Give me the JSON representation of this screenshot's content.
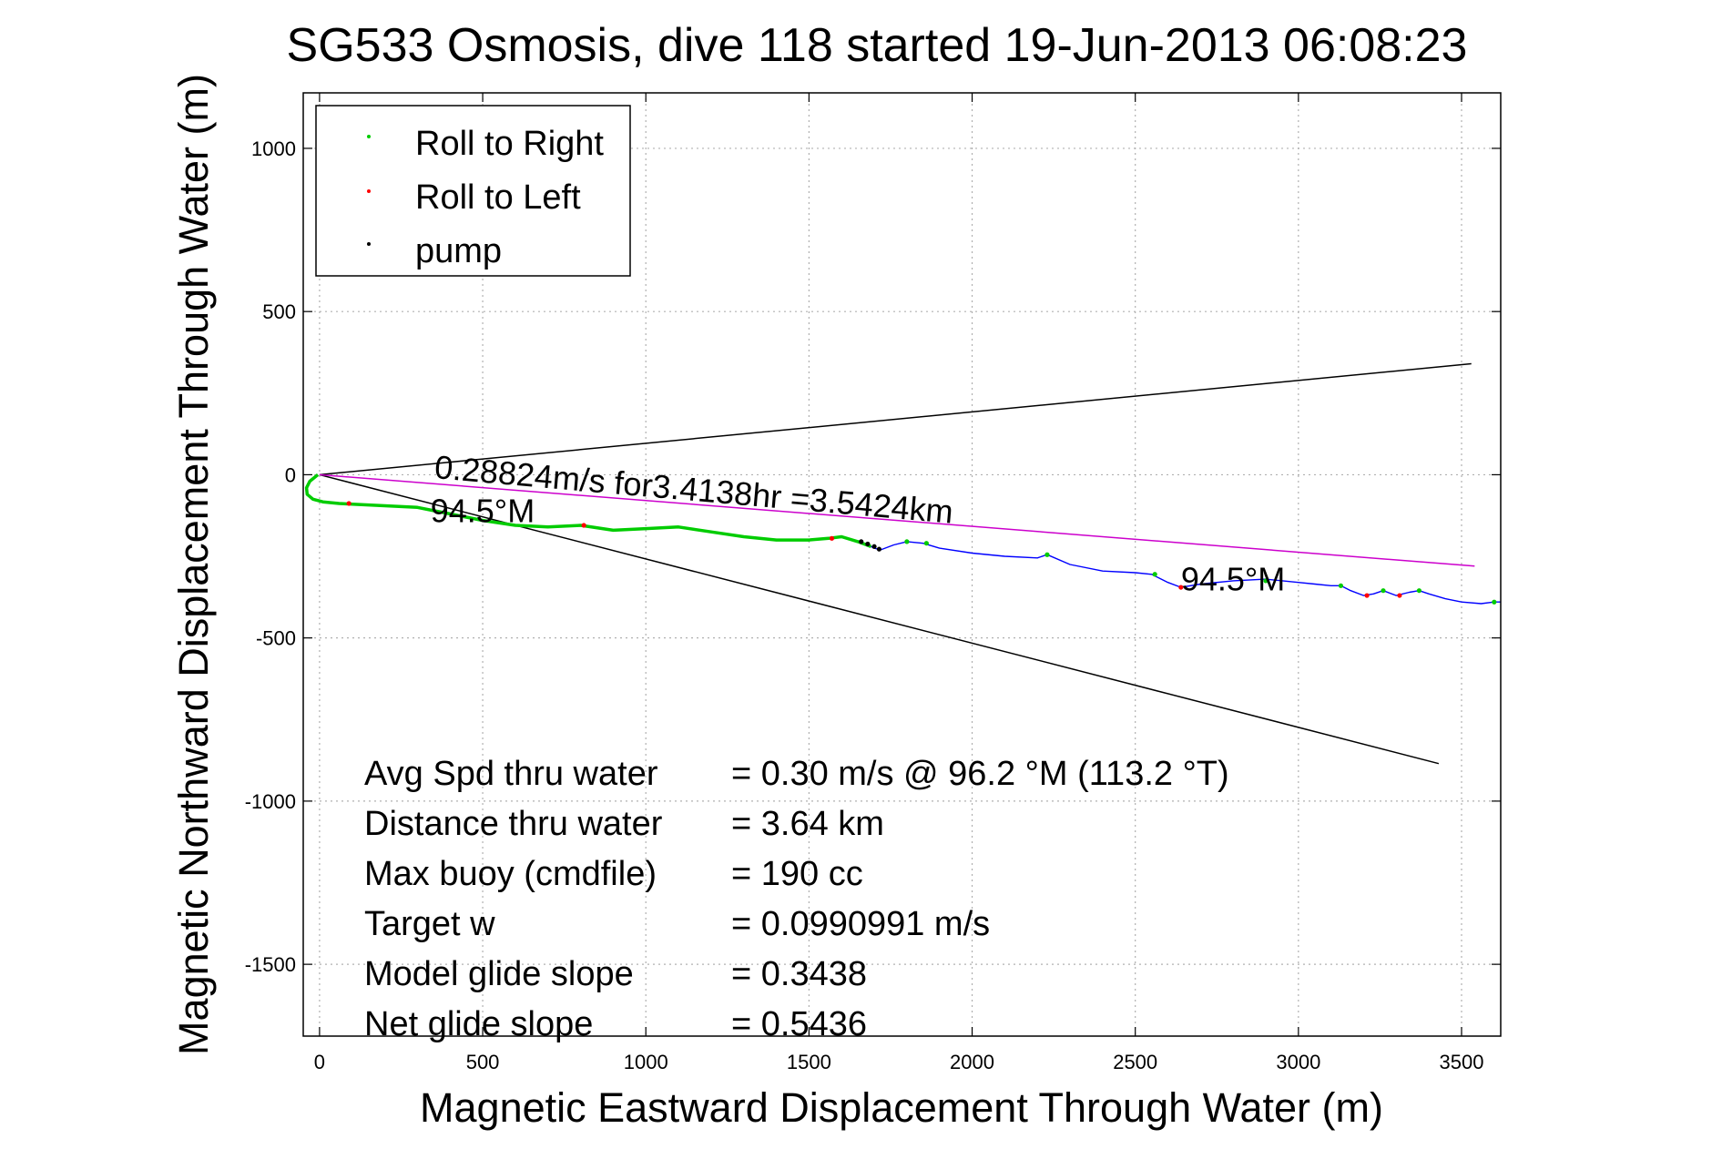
{
  "chart_data": {
    "type": "line",
    "title": "SG533 Osmosis, dive 118 started 19-Jun-2013 06:08:23",
    "xlabel": "Magnetic Eastward Displacement Through Water (m)",
    "ylabel": "Magnetic Northward Displacement Through Water (m)",
    "xlim": [
      -50,
      3620
    ],
    "ylim": [
      -1720,
      1170
    ],
    "xticks": [
      0,
      500,
      1000,
      1500,
      2000,
      2500,
      3000,
      3500
    ],
    "yticks": [
      -1500,
      -1000,
      -500,
      0,
      500,
      1000
    ],
    "grid": true,
    "legend_position": "top-left",
    "legend": [
      {
        "label": "Roll to Right",
        "color": "#00cc00"
      },
      {
        "label": "Roll to Left",
        "color": "#ff0000"
      },
      {
        "label": "pump",
        "color": "#000000"
      }
    ],
    "series": [
      {
        "name": "track",
        "color": "#0000ff",
        "x": [
          -5,
          -30,
          -40,
          -38,
          -20,
          10,
          60,
          100,
          200,
          300,
          350,
          400,
          500,
          600,
          700,
          800,
          900,
          1000,
          1100,
          1200,
          1300,
          1400,
          1500,
          1560,
          1600,
          1650,
          1690,
          1700,
          1720,
          1760,
          1800,
          1850,
          1900,
          2000,
          2100,
          2200,
          2230,
          2300,
          2400,
          2500,
          2550,
          2600,
          2640,
          2700,
          2800,
          2900,
          3000,
          3050,
          3100,
          3130,
          3160,
          3200,
          3230,
          3260,
          3300,
          3340,
          3370,
          3400,
          3450,
          3500,
          3560,
          3600,
          3620
        ],
        "y": [
          0,
          -20,
          -40,
          -60,
          -75,
          -83,
          -88,
          -90,
          -95,
          -100,
          -110,
          -120,
          -140,
          -155,
          -160,
          -155,
          -170,
          -165,
          -160,
          -175,
          -190,
          -200,
          -200,
          -195,
          -190,
          -205,
          -220,
          -225,
          -230,
          -215,
          -205,
          -210,
          -225,
          -240,
          -250,
          -255,
          -245,
          -275,
          -295,
          -300,
          -305,
          -330,
          -345,
          -335,
          -325,
          -320,
          -330,
          -335,
          -340,
          -340,
          -355,
          -370,
          -365,
          -355,
          -370,
          -360,
          -355,
          -365,
          -380,
          -390,
          -395,
          -390,
          -390
        ]
      },
      {
        "name": "",
        "color": "#00cc00",
        "x": [
          -5,
          -30,
          -40,
          -38,
          -20,
          10,
          60,
          100,
          200,
          300,
          350,
          400,
          500,
          600,
          700,
          800,
          900,
          1000,
          1100,
          1200,
          1300,
          1400,
          1500,
          1560,
          1600,
          1650,
          1690
        ],
        "y": [
          0,
          -20,
          -40,
          -60,
          -75,
          -83,
          -88,
          -90,
          -95,
          -100,
          -110,
          -120,
          -140,
          -155,
          -160,
          -155,
          -170,
          -165,
          -160,
          -175,
          -190,
          -200,
          -200,
          -195,
          -190,
          -205,
          -220
        ]
      }
    ],
    "markers": {
      "roll_right": {
        "color": "#00cc00",
        "points": [
          [
            1800,
            -205
          ],
          [
            1860,
            -210
          ],
          [
            2230,
            -245
          ],
          [
            2560,
            -305
          ],
          [
            2900,
            -325
          ],
          [
            3130,
            -340
          ],
          [
            3260,
            -355
          ],
          [
            3370,
            -355
          ],
          [
            3600,
            -390
          ]
        ]
      },
      "roll_left": {
        "color": "#ff0000",
        "points": [
          [
            90,
            -88
          ],
          [
            810,
            -155
          ],
          [
            1570,
            -195
          ],
          [
            2640,
            -345
          ],
          [
            3210,
            -370
          ],
          [
            3310,
            -370
          ]
        ]
      },
      "pump": {
        "color": "#000000",
        "points": [
          [
            1660,
            -205
          ],
          [
            1680,
            -212
          ],
          [
            1700,
            -220
          ],
          [
            1715,
            -228
          ]
        ]
      }
    },
    "reference_lines": [
      {
        "name": "upper-cone-line",
        "color": "#000000",
        "x": [
          0,
          3530
        ],
        "y": [
          0,
          340
        ]
      },
      {
        "name": "lower-cone-line",
        "color": "#000000",
        "x": [
          0,
          3430
        ],
        "y": [
          0,
          -885
        ]
      },
      {
        "name": "speed-vector-line",
        "color": "#cc00cc",
        "x": [
          0,
          3540
        ],
        "y": [
          0,
          -280
        ]
      }
    ],
    "annotations": [
      {
        "text": "0.28824m/s for3.4138hr =3.5424km",
        "x": 350,
        "y": -10,
        "angle": 5
      },
      {
        "text": "94.5°M",
        "x": 340,
        "y": -145,
        "angle": 0
      },
      {
        "text": "94.5°M",
        "x": 2640,
        "y": -355,
        "angle": 0
      }
    ],
    "stats": [
      {
        "label": "Avg Spd thru water",
        "value": "=  0.30 m/s @  96.2 °M (113.2 °T)"
      },
      {
        "label": "Distance thru water",
        "value": "=  3.64 km"
      },
      {
        "label": "Max buoy (cmdfile)",
        "value": "= 190 cc"
      },
      {
        "label": "Target w",
        "value": "= 0.0990991 m/s"
      },
      {
        "label": "Model glide slope",
        "value": "= 0.3438"
      },
      {
        "label": "Net glide slope",
        "value": "= 0.5436"
      }
    ]
  }
}
